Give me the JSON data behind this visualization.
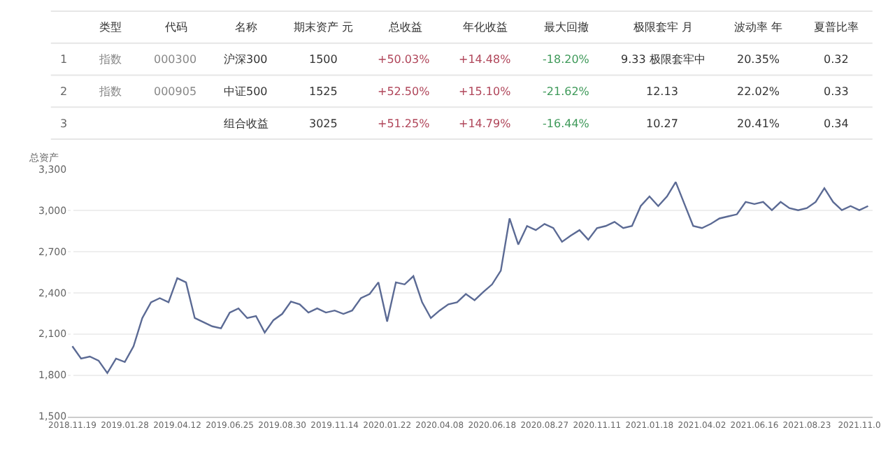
{
  "chart_data": [
    {
      "type": "other",
      "categories": [
        null,
        "类型",
        "代码",
        "名称",
        "期末资产 元",
        "总收益",
        "年化收益",
        "最大回撤",
        "极限套牢 月",
        "波动率 年",
        "夏普比率"
      ],
      "cell_labels": [
        [
          "1",
          "指数",
          "000300",
          "沪深300",
          "1500",
          "+50.03%",
          "+14.48%",
          "-18.20%",
          "9.33 极限套牢中",
          "20.35%",
          "0.32"
        ],
        [
          "2",
          "指数",
          "000905",
          "中证500",
          "1525",
          "+52.50%",
          "+15.10%",
          "-21.62%",
          "12.13",
          "22.02%",
          "0.33"
        ],
        [
          "3",
          null,
          null,
          "组合收益",
          "3025",
          "+51.25%",
          "+14.79%",
          "-16.44%",
          "10.27",
          "20.41%",
          "0.34"
        ]
      ],
      "colors": [
        "#666666",
        "#888888",
        "#888888",
        "#333333",
        "#333333",
        "#b0465a",
        "#b0465a",
        "#3f9a5a",
        "#333333",
        "#333333",
        "#333333"
      ]
    },
    {
      "type": "line",
      "ylabel": "总资产",
      "color": "#5b6a94",
      "grid": "y",
      "marker": "none",
      "categories": [
        "2018.11.19",
        null,
        null,
        null,
        null,
        null,
        "2019.01.28",
        null,
        null,
        null,
        null,
        null,
        "2019.04.12",
        null,
        null,
        null,
        null,
        null,
        "2019.06.25",
        null,
        null,
        null,
        null,
        null,
        "2019.08.30",
        null,
        null,
        null,
        null,
        null,
        "2019.11.14",
        null,
        null,
        null,
        null,
        null,
        "2020.01.22",
        null,
        null,
        null,
        null,
        null,
        "2020.04.08",
        null,
        null,
        null,
        null,
        null,
        "2020.06.18",
        null,
        null,
        null,
        null,
        null,
        "2020.08.27",
        null,
        null,
        null,
        null,
        null,
        "2020.11.11",
        null,
        null,
        null,
        null,
        null,
        "2021.01.18",
        null,
        null,
        null,
        null,
        null,
        "2021.04.02",
        null,
        null,
        null,
        null,
        null,
        "2021.06.16",
        null,
        null,
        null,
        null,
        null,
        "2021.08.23",
        null,
        null,
        null,
        null,
        null,
        "2021.11.0",
        null
      ],
      "values": [
        2010,
        1920,
        1935,
        1905,
        1815,
        1920,
        1895,
        2010,
        2215,
        2330,
        2360,
        2330,
        2505,
        2475,
        2215,
        2185,
        2155,
        2140,
        2255,
        2285,
        2215,
        2230,
        2110,
        2200,
        2245,
        2335,
        2315,
        2255,
        2285,
        2255,
        2270,
        2245,
        2270,
        2360,
        2390,
        2475,
        2190,
        2475,
        2460,
        2520,
        2330,
        2215,
        2270,
        2315,
        2330,
        2390,
        2345,
        2405,
        2460,
        2560,
        2940,
        2750,
        2885,
        2855,
        2900,
        2870,
        2770,
        2815,
        2855,
        2785,
        2870,
        2885,
        2915,
        2870,
        2885,
        3030,
        3100,
        3030,
        3100,
        3205,
        3045,
        2885,
        2870,
        2900,
        2940,
        2955,
        2970,
        3060,
        3045,
        3060,
        3000,
        3060,
        3015,
        3000,
        3015,
        3060,
        3160,
        3060,
        3000,
        3030,
        3000,
        3030
      ],
      "ylim": [
        1500,
        3300
      ],
      "yticks": [
        {
          "value": 1500,
          "label": "1,500"
        },
        {
          "value": 1800,
          "label": "1,800"
        },
        {
          "value": 2100,
          "label": "2,100"
        },
        {
          "value": 2400,
          "label": "2,400"
        },
        {
          "value": 2700,
          "label": "2,700"
        },
        {
          "value": 3000,
          "label": "3,000"
        },
        {
          "value": 3300,
          "label": "3,300"
        }
      ]
    }
  ]
}
